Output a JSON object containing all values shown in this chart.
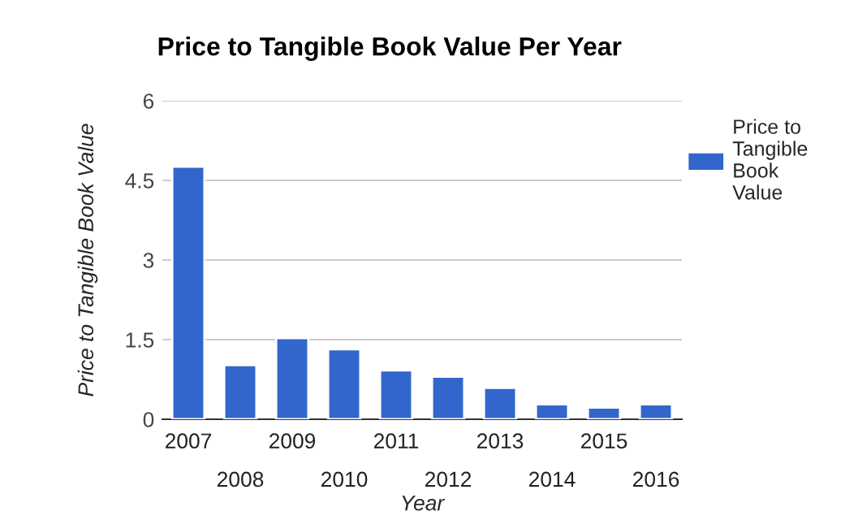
{
  "chart_data": {
    "type": "bar",
    "title": "Price to Tangible Book Value Per Year",
    "xlabel": "Year",
    "ylabel": "Price to Tangible Book Value",
    "categories": [
      "2007",
      "2008",
      "2009",
      "2010",
      "2011",
      "2012",
      "2013",
      "2014",
      "2015",
      "2016"
    ],
    "series": [
      {
        "name": "Price to Tangible Book Value",
        "color": "#3366cc",
        "values": [
          4.76,
          1.02,
          1.53,
          1.32,
          0.92,
          0.8,
          0.59,
          0.28,
          0.22,
          0.28
        ]
      }
    ],
    "ylim": [
      0,
      6
    ],
    "yticks": [
      0,
      1.5,
      3,
      4.5,
      6
    ],
    "grid": "y",
    "legend": "right"
  }
}
